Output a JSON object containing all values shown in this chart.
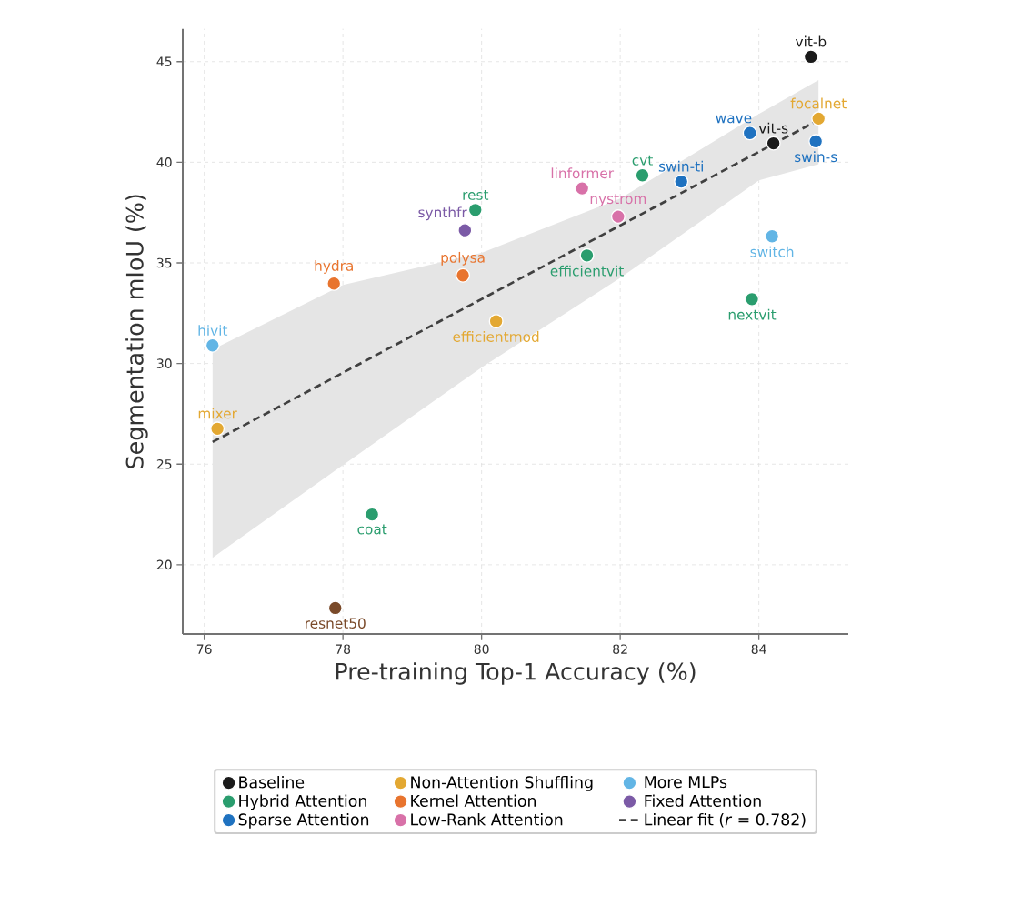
{
  "chart_data": {
    "type": "scatter",
    "xlabel": "Pre-training Top-1 Accuracy (%)",
    "ylabel": "Segmentation mIoU (%)",
    "xlim": [
      75.69,
      85.29
    ],
    "ylim": [
      16.56,
      46.63
    ],
    "xticks": [
      76,
      78,
      80,
      82,
      84
    ],
    "yticks": [
      20,
      25,
      30,
      35,
      40,
      45
    ],
    "grid": true,
    "legend": "bottom",
    "marker": "circle",
    "series": [
      {
        "name": "Baseline",
        "color": "#1a1a1a",
        "x": [
          84.75,
          84.21
        ],
        "values": [
          45.24,
          40.94
        ]
      },
      {
        "name": "Hybrid Attention",
        "color": "#2a9d6e",
        "x": [
          82.32,
          79.91,
          81.52,
          83.9,
          78.42
        ],
        "values": [
          39.35,
          37.63,
          35.37,
          33.2,
          22.5
        ]
      },
      {
        "name": "Sparse Attention",
        "color": "#1f72c0",
        "x": [
          83.87,
          84.82,
          82.88
        ],
        "values": [
          41.45,
          41.04,
          39.04
        ]
      },
      {
        "name": "Non-Attention Shuffling",
        "color": "#e3a832",
        "x": [
          84.86,
          80.21,
          76.19
        ],
        "values": [
          42.17,
          32.1,
          26.76
        ]
      },
      {
        "name": "Kernel Attention",
        "color": "#e8742e",
        "x": [
          77.87,
          79.73
        ],
        "values": [
          33.97,
          34.38
        ]
      },
      {
        "name": "Low-Rank Attention",
        "color": "#d871a8",
        "x": [
          81.45,
          81.97
        ],
        "values": [
          38.7,
          37.3
        ]
      },
      {
        "name": "More MLPs",
        "color": "#62b5e5",
        "x": [
          84.19,
          76.12
        ],
        "values": [
          36.32,
          30.9
        ]
      },
      {
        "name": "Fixed Attention",
        "color": "#7b5aa6",
        "x": [
          79.76
        ],
        "values": [
          36.62
        ]
      },
      {
        "name": "Linear fit (*r* = 0.782)",
        "type": "line",
        "marker": "none",
        "line_style": "dashed",
        "color": "#404040",
        "x": [
          76.12,
          78,
          80,
          82,
          84,
          84.86
        ],
        "values": [
          26.1,
          29.54,
          33.2,
          36.86,
          40.52,
          42.1
        ],
        "lower": [
          20.35,
          24.95,
          29.8,
          34.25,
          39.1,
          39.9
        ],
        "upper": [
          30.7,
          33.9,
          35.5,
          38.2,
          42.4,
          44.08
        ]
      },
      {
        "color": "#7a4a2a",
        "x": [
          77.89
        ],
        "values": [
          17.85
        ]
      }
    ],
    "annotations": [
      {
        "text": "vit-b",
        "x": 84.75,
        "y": 45.24
      },
      {
        "text": "vit-s",
        "x": 84.21,
        "y": 40.94
      },
      {
        "text": "cvt",
        "x": 82.32,
        "y": 39.35
      },
      {
        "text": "rest",
        "x": 79.91,
        "y": 37.63
      },
      {
        "text": "efficientvit",
        "x": 81.52,
        "y": 35.37
      },
      {
        "text": "nextvit",
        "x": 83.9,
        "y": 33.2
      },
      {
        "text": "coat",
        "x": 78.42,
        "y": 22.5
      },
      {
        "text": "wave",
        "x": 83.87,
        "y": 41.45
      },
      {
        "text": "swin-s",
        "x": 84.82,
        "y": 41.04
      },
      {
        "text": "swin-ti",
        "x": 82.88,
        "y": 39.04
      },
      {
        "text": "focalnet",
        "x": 84.86,
        "y": 42.17
      },
      {
        "text": "efficientmod",
        "x": 80.21,
        "y": 32.1
      },
      {
        "text": "mixer",
        "x": 76.19,
        "y": 26.76
      },
      {
        "text": "hydra",
        "x": 77.87,
        "y": 33.97
      },
      {
        "text": "polysa",
        "x": 79.73,
        "y": 34.38
      },
      {
        "text": "linformer",
        "x": 81.45,
        "y": 38.7
      },
      {
        "text": "nystrom",
        "x": 81.97,
        "y": 37.3
      },
      {
        "text": "switch",
        "x": 84.19,
        "y": 36.32
      },
      {
        "text": "hivit",
        "x": 76.12,
        "y": 30.9
      },
      {
        "text": "synthfr",
        "x": 79.76,
        "y": 36.62
      },
      {
        "text": "resnet50",
        "x": 77.89,
        "y": 17.85
      }
    ]
  }
}
